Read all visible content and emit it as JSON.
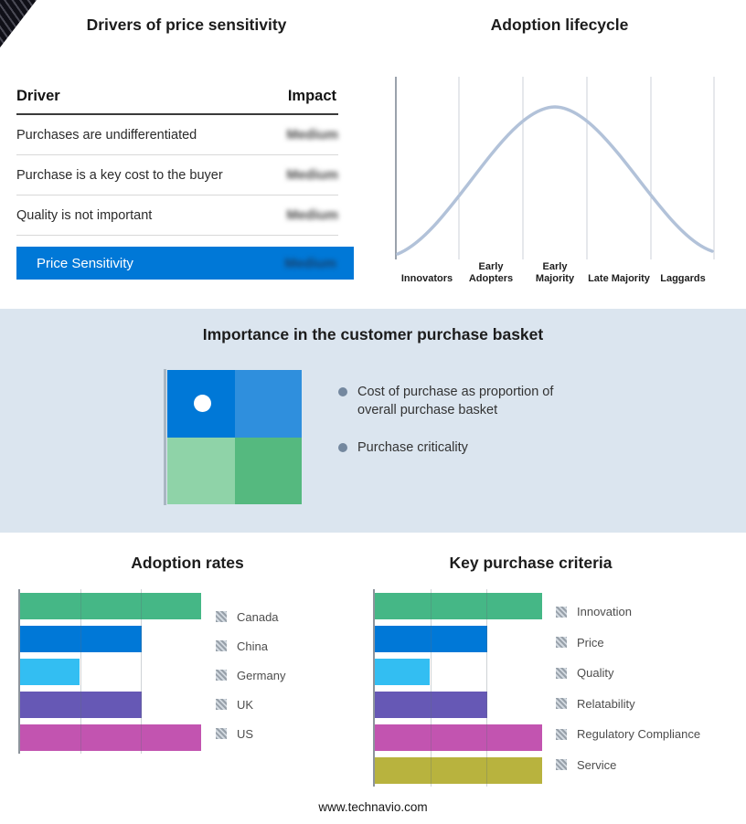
{
  "drivers_panel": {
    "title": "Drivers of price sensitivity",
    "table": {
      "header": {
        "driver": "Driver",
        "impact": "Impact"
      },
      "rows": [
        {
          "driver": "Purchases are undifferentiated",
          "impact": "Medium"
        },
        {
          "driver": "Purchase is a key cost to the buyer",
          "impact": "Medium"
        },
        {
          "driver": "Quality is not important",
          "impact": "Medium"
        }
      ],
      "highlight_row": {
        "driver": "Price Sensitivity",
        "impact": "Medium"
      },
      "highlight_color": "#0078d7",
      "impact_values_obscured": true
    }
  },
  "basket_panel": {
    "title": "Importance in the customer purchase basket",
    "bullets": [
      "Cost of purchase as proportion of overall purchase basket",
      "Purchase criticality"
    ],
    "matrix_colors": [
      "#0078d7",
      "#2f8fdd",
      "#8fd3a8",
      "#55b97f"
    ]
  },
  "footer": {
    "url": "www.technavio.com"
  },
  "chart_data": [
    {
      "type": "line",
      "title": "Adoption lifecycle",
      "categories": [
        "Innovators",
        "Early Adopters",
        "Early Majority",
        "Late Majority",
        "Laggards"
      ],
      "values": [
        8,
        55,
        100,
        55,
        8
      ],
      "curve": "bell",
      "curve_color": "#b2c2d9",
      "grid": true,
      "xlabel": "",
      "ylabel": ""
    },
    {
      "type": "bar",
      "title": "Adoption rates",
      "orientation": "horizontal",
      "categories": [
        "Canada",
        "China",
        "Germany",
        "UK",
        "US"
      ],
      "values": [
        100,
        67,
        33,
        67,
        100
      ],
      "max": 100,
      "xlim": [
        0,
        100
      ],
      "colors": [
        "#45b786",
        "#0078d7",
        "#33bef2",
        "#6658b5",
        "#c254b0"
      ],
      "grid_pct": [
        33.3,
        66.7
      ],
      "legend_position": "right"
    },
    {
      "type": "bar",
      "title": "Key purchase criteria",
      "orientation": "horizontal",
      "categories": [
        "Innovation",
        "Price",
        "Quality",
        "Relatability",
        "Regulatory Compliance",
        "Service"
      ],
      "values": [
        100,
        67,
        33,
        67,
        100,
        100
      ],
      "max": 100,
      "xlim": [
        0,
        100
      ],
      "colors": [
        "#45b786",
        "#0078d7",
        "#33bef2",
        "#6658b5",
        "#c254b0",
        "#b8b33e"
      ],
      "grid_pct": [
        33.3,
        66.7
      ],
      "legend_position": "right"
    }
  ]
}
